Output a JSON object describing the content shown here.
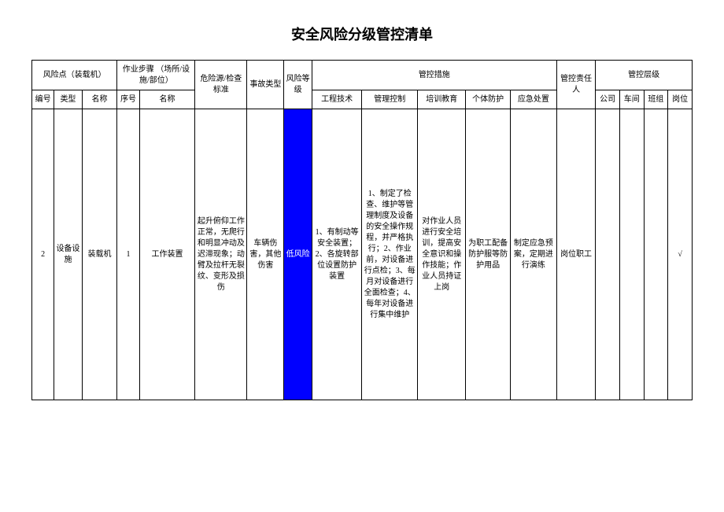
{
  "title": "安全风险分级管控清单",
  "headers": {
    "risk_point": "风险点（装载机）",
    "work_step": "作业步骤\n（场所/设施/部位）",
    "hazard_std": "危险源/检查标准",
    "accident_type": "事故类型",
    "risk_level_h": "风险等级",
    "control_measures": "管控措施",
    "responsible": "管控责任人",
    "control_level": "管控层级",
    "num": "编号",
    "type": "类型",
    "name": "名称",
    "seq": "序号",
    "step_name": "名称",
    "eng_tech": "工程技术",
    "mgmt_ctrl": "管理控制",
    "training": "培训教育",
    "ppe": "个体防护",
    "emergency": "应急处置",
    "company": "公司",
    "workshop": "车间",
    "team": "班组",
    "post": "岗位"
  },
  "row": {
    "num": "2",
    "type": "设备设施",
    "name": "装载机",
    "seq": "1",
    "step_name": "工作装置",
    "hazard_std": "起升俯仰工作正常，无爬行和明显冲动及迟滞现象；动臂及拉杆无裂纹、变形及损伤",
    "accident_type": "车辆伤害，其他伤害",
    "risk_level": "低风险",
    "eng_tech": "1、有制动等安全装置；2、各旋转部位设置防护装置",
    "mgmt_ctrl": "1、制定了检查、维护等管理制度及设备的安全操作规程，并严格执行；2、作业前，对设备进行点检；3、每月对设备进行全面检查；4、每年对设备进行集中维护",
    "training": "对作业人员进行安全培训，提高安全意识和操作技能；作业人员持证上岗",
    "ppe": "为职工配备防护服等防护用品",
    "emergency": "制定应急预案，定期进行演练",
    "responsible": "岗位职工",
    "company": "",
    "workshop": "",
    "team": "",
    "post": "√"
  },
  "colors": {
    "risk_bg": "#0000ff",
    "risk_text": "#ffffff",
    "border": "#000000",
    "bg": "#ffffff"
  }
}
